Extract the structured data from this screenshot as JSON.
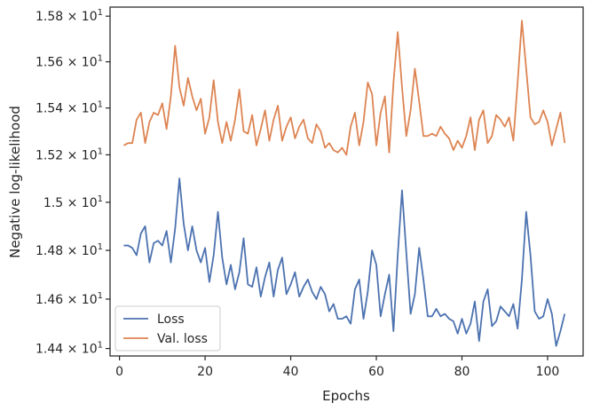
{
  "chart_data": {
    "type": "line",
    "title": "",
    "xlabel": "Epochs",
    "ylabel": "Negative log-likelihood",
    "xlim": [
      -2.2,
      108.3
    ],
    "ylim": [
      14.37,
      15.84
    ],
    "y_scale": "log",
    "grid": false,
    "legend_position": "lower-left",
    "x_ticks": [
      0,
      20,
      40,
      60,
      80,
      100
    ],
    "y_ticks": [
      {
        "value": 14.4,
        "mantissa": "1.44",
        "base": "10",
        "exp": "1"
      },
      {
        "value": 14.6,
        "mantissa": "1.46",
        "base": "10",
        "exp": "1"
      },
      {
        "value": 14.8,
        "mantissa": "1.48",
        "base": "10",
        "exp": "1"
      },
      {
        "value": 15.0,
        "mantissa": "1.5",
        "base": "10",
        "exp": "1"
      },
      {
        "value": 15.2,
        "mantissa": "1.52",
        "base": "10",
        "exp": "1"
      },
      {
        "value": 15.4,
        "mantissa": "1.54",
        "base": "10",
        "exp": "1"
      },
      {
        "value": 15.6,
        "mantissa": "1.56",
        "base": "10",
        "exp": "1"
      },
      {
        "value": 15.8,
        "mantissa": "1.58",
        "base": "10",
        "exp": "1"
      }
    ],
    "x_start": 1,
    "series": [
      {
        "name": "Loss",
        "color": "#4c72b0",
        "values": [
          14.82,
          14.82,
          14.81,
          14.78,
          14.87,
          14.9,
          14.75,
          14.83,
          14.84,
          14.82,
          14.88,
          14.75,
          14.89,
          15.1,
          14.91,
          14.8,
          14.9,
          14.8,
          14.75,
          14.81,
          14.67,
          14.78,
          14.96,
          14.77,
          14.66,
          14.74,
          14.64,
          14.71,
          14.85,
          14.66,
          14.65,
          14.73,
          14.61,
          14.69,
          14.75,
          14.61,
          14.72,
          14.77,
          14.62,
          14.66,
          14.71,
          14.61,
          14.65,
          14.68,
          14.63,
          14.6,
          14.65,
          14.62,
          14.55,
          14.58,
          14.52,
          14.52,
          14.53,
          14.5,
          14.64,
          14.68,
          14.52,
          14.63,
          14.8,
          14.74,
          14.53,
          14.62,
          14.7,
          14.47,
          14.78,
          15.05,
          14.79,
          14.54,
          14.62,
          14.81,
          14.68,
          14.53,
          14.53,
          14.56,
          14.53,
          14.54,
          14.52,
          14.51,
          14.46,
          14.52,
          14.46,
          14.5,
          14.59,
          14.43,
          14.59,
          14.64,
          14.49,
          14.51,
          14.57,
          14.55,
          14.53,
          14.58,
          14.48,
          14.68,
          14.96,
          14.78,
          14.55,
          14.52,
          14.53,
          14.6,
          14.54,
          14.41,
          14.47,
          14.54
        ]
      },
      {
        "name": "Val. loss",
        "color": "#dd8452",
        "values": [
          15.24,
          15.25,
          15.25,
          15.35,
          15.38,
          15.25,
          15.34,
          15.38,
          15.37,
          15.42,
          15.31,
          15.45,
          15.67,
          15.49,
          15.41,
          15.53,
          15.45,
          15.39,
          15.44,
          15.29,
          15.36,
          15.52,
          15.34,
          15.25,
          15.34,
          15.26,
          15.35,
          15.48,
          15.3,
          15.29,
          15.37,
          15.24,
          15.31,
          15.39,
          15.26,
          15.35,
          15.41,
          15.26,
          15.32,
          15.36,
          15.27,
          15.32,
          15.35,
          15.27,
          15.25,
          15.33,
          15.3,
          15.23,
          15.25,
          15.22,
          15.21,
          15.23,
          15.2,
          15.32,
          15.38,
          15.24,
          15.34,
          15.51,
          15.46,
          15.24,
          15.38,
          15.45,
          15.21,
          15.51,
          15.73,
          15.49,
          15.28,
          15.39,
          15.57,
          15.43,
          15.28,
          15.28,
          15.29,
          15.28,
          15.32,
          15.29,
          15.27,
          15.22,
          15.26,
          15.23,
          15.28,
          15.36,
          15.22,
          15.35,
          15.39,
          15.25,
          15.28,
          15.37,
          15.35,
          15.32,
          15.36,
          15.26,
          15.51,
          15.78,
          15.57,
          15.36,
          15.33,
          15.34,
          15.39,
          15.34,
          15.24,
          15.31,
          15.38,
          15.25
        ]
      }
    ]
  }
}
